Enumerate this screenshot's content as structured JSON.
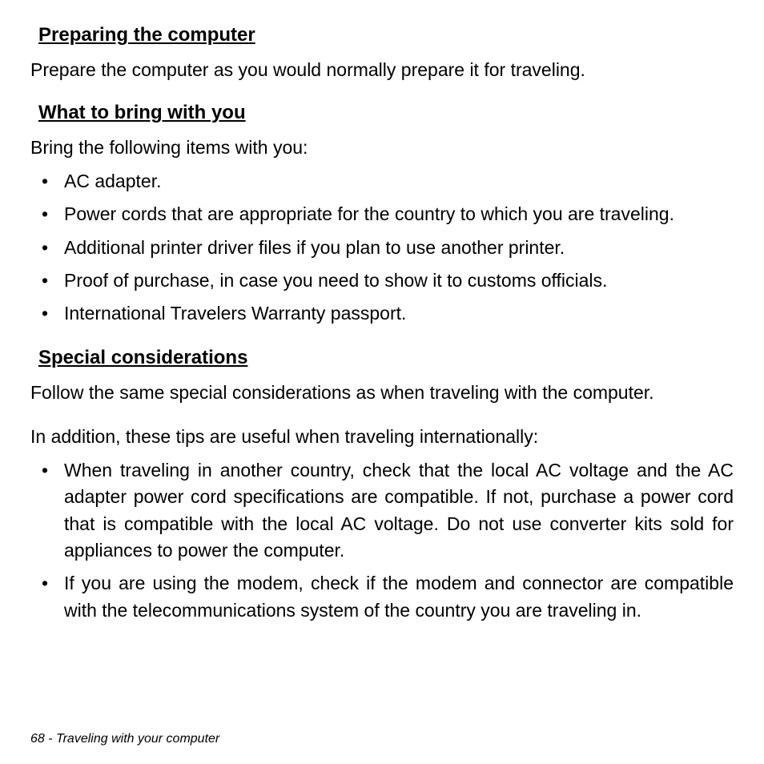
{
  "sections": [
    {
      "heading": "Preparing the computer",
      "paragraphs": [
        {
          "text": "Prepare the computer as you would normally prepare it for traveling.",
          "justify": false
        }
      ]
    },
    {
      "heading": "What to bring with you",
      "intro": "Bring the following items with you:",
      "bullets": [
        "AC adapter.",
        "Power cords that are appropriate for the country to which you are traveling.",
        "Additional printer driver files if you plan to use another printer.",
        "Proof of purchase, in case you need to show it to customs officials.",
        "International Travelers Warranty passport."
      ]
    },
    {
      "heading": "Special considerations",
      "paragraphs": [
        {
          "text": "Follow the same special considerations as when traveling with the computer.",
          "justify": true
        },
        {
          "text": "In addition, these tips are useful when traveling internationally:",
          "justify": false
        }
      ],
      "bullets": [
        "When traveling in another country, check that the local AC voltage and the AC adapter power cord specifications are compatible. If not, purchase a power cord that is compatible with the local AC voltage. Do not use converter kits sold for appliances to power the computer.",
        "If you are using the modem, check if the modem and connector are compatible with the telecommunications system of the country you are traveling in."
      ]
    }
  ],
  "footer": {
    "page_number": "68",
    "separator": " - ",
    "chapter": "Traveling with your computer"
  }
}
